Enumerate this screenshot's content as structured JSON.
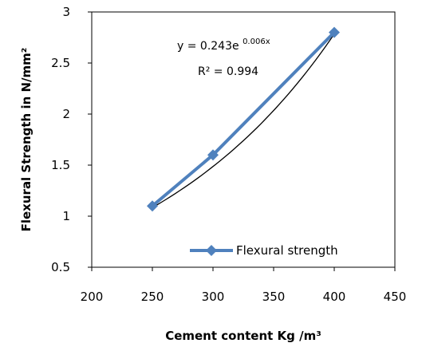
{
  "chart_data": {
    "type": "scatter",
    "xlabel": "Cement content Kg /m³",
    "ylabel": "Flexural Strength in N/mm²",
    "xlim": [
      200,
      450
    ],
    "ylim": [
      0.5,
      3
    ],
    "x_ticks": [
      "200",
      "250",
      "300",
      "350",
      "400",
      "450"
    ],
    "y_ticks": [
      "0.5",
      "1",
      "1.5",
      "2",
      "2.5",
      "3"
    ],
    "series": [
      {
        "name": "Flexural strength",
        "color": "#4f81bd",
        "marker": "diamond",
        "x": [
          250,
          300,
          400
        ],
        "y": [
          1.1,
          1.6,
          2.8
        ]
      }
    ],
    "trendline": {
      "type": "exponential",
      "color": "#000000",
      "equation": "y = 0.243e",
      "equation_exponent": "0.006x",
      "r_squared": "R² = 0.994"
    },
    "legend_position": "bottom-right"
  }
}
